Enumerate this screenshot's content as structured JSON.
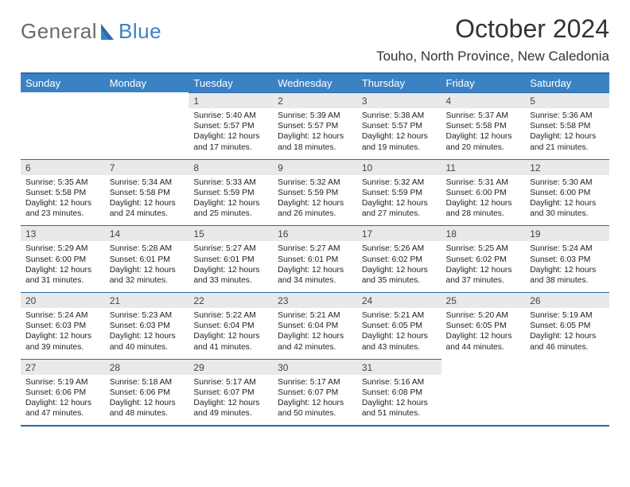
{
  "brand": {
    "part1": "General",
    "part2": "Blue"
  },
  "title": "October 2024",
  "location": "Touho, North Province, New Caledonia",
  "colors": {
    "header_bg": "#3b82c4",
    "rule": "#2a6aa8",
    "daynum_bg": "#e9e9ea",
    "text": "#222222",
    "logo_gray": "#6a6a6a",
    "logo_blue": "#3b82c4"
  },
  "weekdays": [
    "Sunday",
    "Monday",
    "Tuesday",
    "Wednesday",
    "Thursday",
    "Friday",
    "Saturday"
  ],
  "weeks": [
    [
      {
        "n": "",
        "sr": "",
        "ss": "",
        "dl": ""
      },
      {
        "n": "",
        "sr": "",
        "ss": "",
        "dl": ""
      },
      {
        "n": "1",
        "sr": "Sunrise: 5:40 AM",
        "ss": "Sunset: 5:57 PM",
        "dl": "Daylight: 12 hours and 17 minutes."
      },
      {
        "n": "2",
        "sr": "Sunrise: 5:39 AM",
        "ss": "Sunset: 5:57 PM",
        "dl": "Daylight: 12 hours and 18 minutes."
      },
      {
        "n": "3",
        "sr": "Sunrise: 5:38 AM",
        "ss": "Sunset: 5:57 PM",
        "dl": "Daylight: 12 hours and 19 minutes."
      },
      {
        "n": "4",
        "sr": "Sunrise: 5:37 AM",
        "ss": "Sunset: 5:58 PM",
        "dl": "Daylight: 12 hours and 20 minutes."
      },
      {
        "n": "5",
        "sr": "Sunrise: 5:36 AM",
        "ss": "Sunset: 5:58 PM",
        "dl": "Daylight: 12 hours and 21 minutes."
      }
    ],
    [
      {
        "n": "6",
        "sr": "Sunrise: 5:35 AM",
        "ss": "Sunset: 5:58 PM",
        "dl": "Daylight: 12 hours and 23 minutes."
      },
      {
        "n": "7",
        "sr": "Sunrise: 5:34 AM",
        "ss": "Sunset: 5:58 PM",
        "dl": "Daylight: 12 hours and 24 minutes."
      },
      {
        "n": "8",
        "sr": "Sunrise: 5:33 AM",
        "ss": "Sunset: 5:59 PM",
        "dl": "Daylight: 12 hours and 25 minutes."
      },
      {
        "n": "9",
        "sr": "Sunrise: 5:32 AM",
        "ss": "Sunset: 5:59 PM",
        "dl": "Daylight: 12 hours and 26 minutes."
      },
      {
        "n": "10",
        "sr": "Sunrise: 5:32 AM",
        "ss": "Sunset: 5:59 PM",
        "dl": "Daylight: 12 hours and 27 minutes."
      },
      {
        "n": "11",
        "sr": "Sunrise: 5:31 AM",
        "ss": "Sunset: 6:00 PM",
        "dl": "Daylight: 12 hours and 28 minutes."
      },
      {
        "n": "12",
        "sr": "Sunrise: 5:30 AM",
        "ss": "Sunset: 6:00 PM",
        "dl": "Daylight: 12 hours and 30 minutes."
      }
    ],
    [
      {
        "n": "13",
        "sr": "Sunrise: 5:29 AM",
        "ss": "Sunset: 6:00 PM",
        "dl": "Daylight: 12 hours and 31 minutes."
      },
      {
        "n": "14",
        "sr": "Sunrise: 5:28 AM",
        "ss": "Sunset: 6:01 PM",
        "dl": "Daylight: 12 hours and 32 minutes."
      },
      {
        "n": "15",
        "sr": "Sunrise: 5:27 AM",
        "ss": "Sunset: 6:01 PM",
        "dl": "Daylight: 12 hours and 33 minutes."
      },
      {
        "n": "16",
        "sr": "Sunrise: 5:27 AM",
        "ss": "Sunset: 6:01 PM",
        "dl": "Daylight: 12 hours and 34 minutes."
      },
      {
        "n": "17",
        "sr": "Sunrise: 5:26 AM",
        "ss": "Sunset: 6:02 PM",
        "dl": "Daylight: 12 hours and 35 minutes."
      },
      {
        "n": "18",
        "sr": "Sunrise: 5:25 AM",
        "ss": "Sunset: 6:02 PM",
        "dl": "Daylight: 12 hours and 37 minutes."
      },
      {
        "n": "19",
        "sr": "Sunrise: 5:24 AM",
        "ss": "Sunset: 6:03 PM",
        "dl": "Daylight: 12 hours and 38 minutes."
      }
    ],
    [
      {
        "n": "20",
        "sr": "Sunrise: 5:24 AM",
        "ss": "Sunset: 6:03 PM",
        "dl": "Daylight: 12 hours and 39 minutes."
      },
      {
        "n": "21",
        "sr": "Sunrise: 5:23 AM",
        "ss": "Sunset: 6:03 PM",
        "dl": "Daylight: 12 hours and 40 minutes."
      },
      {
        "n": "22",
        "sr": "Sunrise: 5:22 AM",
        "ss": "Sunset: 6:04 PM",
        "dl": "Daylight: 12 hours and 41 minutes."
      },
      {
        "n": "23",
        "sr": "Sunrise: 5:21 AM",
        "ss": "Sunset: 6:04 PM",
        "dl": "Daylight: 12 hours and 42 minutes."
      },
      {
        "n": "24",
        "sr": "Sunrise: 5:21 AM",
        "ss": "Sunset: 6:05 PM",
        "dl": "Daylight: 12 hours and 43 minutes."
      },
      {
        "n": "25",
        "sr": "Sunrise: 5:20 AM",
        "ss": "Sunset: 6:05 PM",
        "dl": "Daylight: 12 hours and 44 minutes."
      },
      {
        "n": "26",
        "sr": "Sunrise: 5:19 AM",
        "ss": "Sunset: 6:05 PM",
        "dl": "Daylight: 12 hours and 46 minutes."
      }
    ],
    [
      {
        "n": "27",
        "sr": "Sunrise: 5:19 AM",
        "ss": "Sunset: 6:06 PM",
        "dl": "Daylight: 12 hours and 47 minutes."
      },
      {
        "n": "28",
        "sr": "Sunrise: 5:18 AM",
        "ss": "Sunset: 6:06 PM",
        "dl": "Daylight: 12 hours and 48 minutes."
      },
      {
        "n": "29",
        "sr": "Sunrise: 5:17 AM",
        "ss": "Sunset: 6:07 PM",
        "dl": "Daylight: 12 hours and 49 minutes."
      },
      {
        "n": "30",
        "sr": "Sunrise: 5:17 AM",
        "ss": "Sunset: 6:07 PM",
        "dl": "Daylight: 12 hours and 50 minutes."
      },
      {
        "n": "31",
        "sr": "Sunrise: 5:16 AM",
        "ss": "Sunset: 6:08 PM",
        "dl": "Daylight: 12 hours and 51 minutes."
      },
      {
        "n": "",
        "sr": "",
        "ss": "",
        "dl": ""
      },
      {
        "n": "",
        "sr": "",
        "ss": "",
        "dl": ""
      }
    ]
  ]
}
